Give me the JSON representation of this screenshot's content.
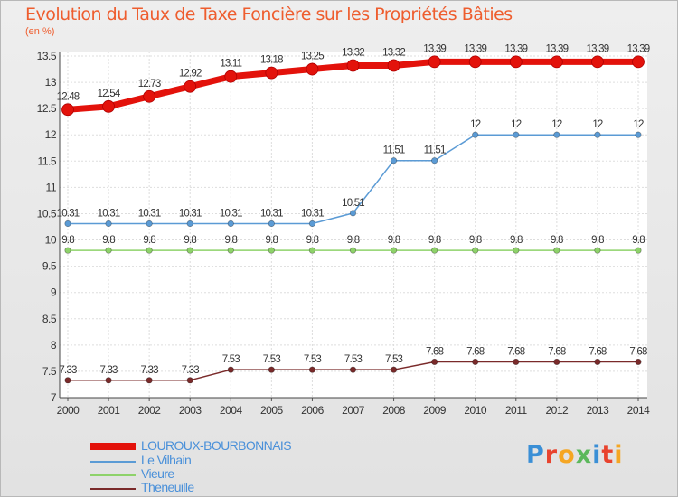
{
  "title": "Evolution du Taux de Taxe Foncière sur les Propriétés Bâties",
  "unit_label": "(en %)",
  "logo_text": "Proxiti",
  "logo_colors": [
    "#3a8fd6",
    "#e8432e",
    "#f5a623",
    "#5cb85c",
    "#3a8fd6",
    "#e8432e",
    "#f5a623"
  ],
  "chart_data": {
    "type": "line",
    "x": [
      "2000",
      "2001",
      "2002",
      "2003",
      "2004",
      "2005",
      "2006",
      "2007",
      "2008",
      "2009",
      "2010",
      "2011",
      "2012",
      "2013",
      "2014"
    ],
    "ylim": [
      7,
      13.5
    ],
    "yticks": [
      "7",
      "7.5",
      "8",
      "8.5",
      "9",
      "9.5",
      "10",
      "10.5",
      "11",
      "11.5",
      "12",
      "12.5",
      "13",
      "13.5"
    ],
    "grid": true,
    "legend": "bottom-left",
    "series": [
      {
        "name": "LOUROUX-BOURBONNAIS",
        "color": "#e3120b",
        "values": [
          12.48,
          12.54,
          12.73,
          12.92,
          13.11,
          13.18,
          13.25,
          13.32,
          13.32,
          13.39,
          13.39,
          13.39,
          13.39,
          13.39,
          13.39
        ],
        "labels": [
          "12.48",
          "12.54",
          "12.73",
          "12.92",
          "13.11",
          "13.18",
          "13.25",
          "13.32",
          "13.32",
          "13.39",
          "13.39",
          "13.39",
          "13.39",
          "13.39",
          "13.39"
        ]
      },
      {
        "name": "Le Vilhain",
        "color": "#5b9bd5",
        "values": [
          10.31,
          10.31,
          10.31,
          10.31,
          10.31,
          10.31,
          10.31,
          10.51,
          11.51,
          11.51,
          12,
          12,
          12,
          12,
          12
        ],
        "labels": [
          "10.31",
          "10.31",
          "10.31",
          "10.31",
          "10.31",
          "10.31",
          "10.31",
          "10.51",
          "11.51",
          "11.51",
          "12",
          "12",
          "12",
          "12",
          "12"
        ]
      },
      {
        "name": "Vieure",
        "color": "#8ed26a",
        "values": [
          9.8,
          9.8,
          9.8,
          9.8,
          9.8,
          9.8,
          9.8,
          9.8,
          9.8,
          9.8,
          9.8,
          9.8,
          9.8,
          9.8,
          9.8
        ],
        "labels": [
          "9.8",
          "9.8",
          "9.8",
          "9.8",
          "9.8",
          "9.8",
          "9.8",
          "9.8",
          "9.8",
          "9.8",
          "9.8",
          "9.8",
          "9.8",
          "9.8",
          "9.8"
        ]
      },
      {
        "name": "Theneuille",
        "color": "#7a2a2a",
        "values": [
          7.33,
          7.33,
          7.33,
          7.33,
          7.53,
          7.53,
          7.53,
          7.53,
          7.53,
          7.68,
          7.68,
          7.68,
          7.68,
          7.68,
          7.68
        ],
        "labels": [
          "7.33",
          "7.33",
          "7.33",
          "7.33",
          "7.53",
          "7.53",
          "7.53",
          "7.53",
          "7.53",
          "7.68",
          "7.68",
          "7.68",
          "7.68",
          "7.68",
          "7.68"
        ]
      }
    ]
  }
}
